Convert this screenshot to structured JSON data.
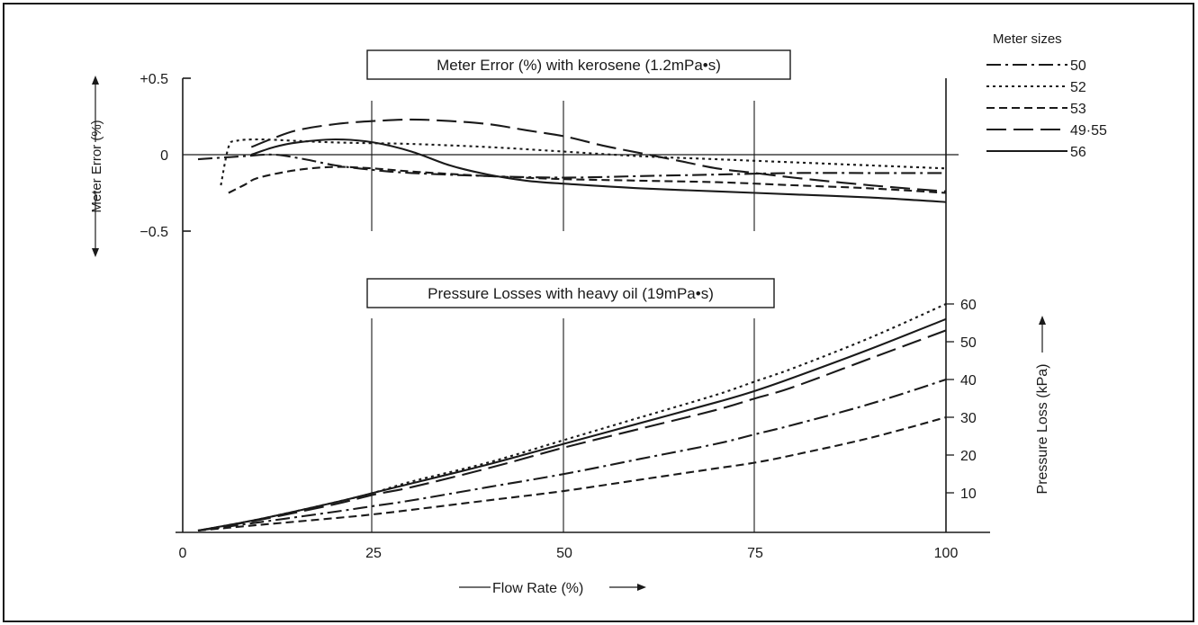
{
  "colors": {
    "ink": "#1a1a1a",
    "background": "#ffffff"
  },
  "chart_data": [
    {
      "type": "line",
      "title": "Meter Error (%)  with kerosene (1.2mPa•s)",
      "xlabel": "Flow Rate (%)",
      "ylabel": "Meter Error (%)",
      "xlim": [
        0,
        100
      ],
      "ylim": [
        -0.5,
        0.5
      ],
      "x_ticks": [
        "0",
        "25",
        "50",
        "75",
        "100"
      ],
      "y_ticks": [
        "+0.5",
        "0",
        "−0.5"
      ],
      "series": [
        {
          "name": "50",
          "style": "dash-dot",
          "x": [
            2,
            8,
            12,
            16,
            20,
            25,
            30,
            40,
            50,
            60,
            70,
            80,
            90,
            100
          ],
          "y": [
            -0.03,
            -0.01,
            0.0,
            -0.03,
            -0.07,
            -0.1,
            -0.12,
            -0.14,
            -0.15,
            -0.14,
            -0.13,
            -0.12,
            -0.12,
            -0.12
          ]
        },
        {
          "name": "52",
          "style": "dotted",
          "x": [
            5,
            6,
            7,
            10,
            15,
            20,
            25,
            30,
            40,
            50,
            60,
            70,
            80,
            90,
            100
          ],
          "y": [
            -0.2,
            0.05,
            0.09,
            0.1,
            0.09,
            0.08,
            0.075,
            0.07,
            0.05,
            0.02,
            -0.01,
            -0.03,
            -0.05,
            -0.07,
            -0.09
          ]
        },
        {
          "name": "53",
          "style": "dashed",
          "x": [
            6,
            8,
            10,
            15,
            20,
            25,
            30,
            40,
            50,
            60,
            70,
            80,
            90,
            100
          ],
          "y": [
            -0.25,
            -0.2,
            -0.15,
            -0.1,
            -0.08,
            -0.09,
            -0.11,
            -0.14,
            -0.16,
            -0.17,
            -0.18,
            -0.2,
            -0.22,
            -0.25
          ]
        },
        {
          "name": "49·55",
          "style": "long-dash",
          "x": [
            9,
            12,
            15,
            20,
            25,
            30,
            35,
            40,
            45,
            50,
            55,
            60,
            65,
            70,
            75,
            80,
            90,
            100
          ],
          "y": [
            0.05,
            0.11,
            0.16,
            0.2,
            0.22,
            0.23,
            0.22,
            0.2,
            0.16,
            0.12,
            0.06,
            0.01,
            -0.04,
            -0.09,
            -0.12,
            -0.15,
            -0.2,
            -0.24
          ]
        },
        {
          "name": "56",
          "style": "solid",
          "x": [
            9,
            12,
            15,
            20,
            25,
            30,
            35,
            40,
            45,
            50,
            60,
            70,
            80,
            90,
            100
          ],
          "y": [
            0.0,
            0.05,
            0.08,
            0.1,
            0.08,
            0.02,
            -0.07,
            -0.13,
            -0.17,
            -0.19,
            -0.22,
            -0.24,
            -0.26,
            -0.28,
            -0.31
          ]
        }
      ]
    },
    {
      "type": "line",
      "title": "Pressure Losses with heavy oil (19mPa•s)",
      "xlabel": "Flow Rate (%)",
      "ylabel": "Pressure Loss (kPa)",
      "xlim": [
        0,
        100
      ],
      "ylim": [
        0,
        60
      ],
      "y_ticks": [
        "10",
        "20",
        "30",
        "40",
        "50",
        "60"
      ],
      "series": [
        {
          "name": "52",
          "style": "dotted",
          "x": [
            2,
            10,
            20,
            25,
            30,
            40,
            50,
            60,
            70,
            75,
            80,
            90,
            100
          ],
          "y": [
            0,
            3,
            7.5,
            10,
            13,
            18,
            24,
            30,
            36,
            39.5,
            43,
            51,
            60
          ]
        },
        {
          "name": "56",
          "style": "solid",
          "x": [
            2,
            10,
            20,
            25,
            30,
            40,
            50,
            60,
            70,
            75,
            80,
            90,
            100
          ],
          "y": [
            0,
            3,
            7.5,
            10,
            12.5,
            17.5,
            23,
            28.5,
            34,
            37,
            40.5,
            48,
            56
          ]
        },
        {
          "name": "49·55",
          "style": "long-dash",
          "x": [
            2,
            10,
            20,
            25,
            30,
            40,
            50,
            60,
            70,
            75,
            80,
            90,
            100
          ],
          "y": [
            0,
            2.8,
            7,
            9.5,
            11.5,
            16.5,
            22,
            27,
            32,
            35,
            38,
            45.5,
            53
          ]
        },
        {
          "name": "50",
          "style": "dash-dot",
          "x": [
            2,
            10,
            20,
            25,
            30,
            40,
            50,
            60,
            70,
            75,
            80,
            90,
            100
          ],
          "y": [
            0,
            2.2,
            5,
            6.5,
            8,
            11.5,
            15,
            19,
            23,
            25.5,
            28,
            33.5,
            40
          ]
        },
        {
          "name": "53",
          "style": "dashed",
          "x": [
            2,
            10,
            20,
            25,
            30,
            40,
            50,
            60,
            70,
            75,
            80,
            90,
            100
          ],
          "y": [
            0,
            1.5,
            3.3,
            4.3,
            5.5,
            8,
            10.5,
            13.5,
            16.5,
            18,
            20,
            24.5,
            30
          ]
        }
      ]
    }
  ],
  "legend": {
    "title": "Meter sizes",
    "entries": [
      {
        "label": "50",
        "style": "dash-dot"
      },
      {
        "label": "52",
        "style": "dotted"
      },
      {
        "label": "53",
        "style": "dashed"
      },
      {
        "label": "49·55",
        "style": "long-dash"
      },
      {
        "label": "56",
        "style": "solid"
      }
    ]
  }
}
